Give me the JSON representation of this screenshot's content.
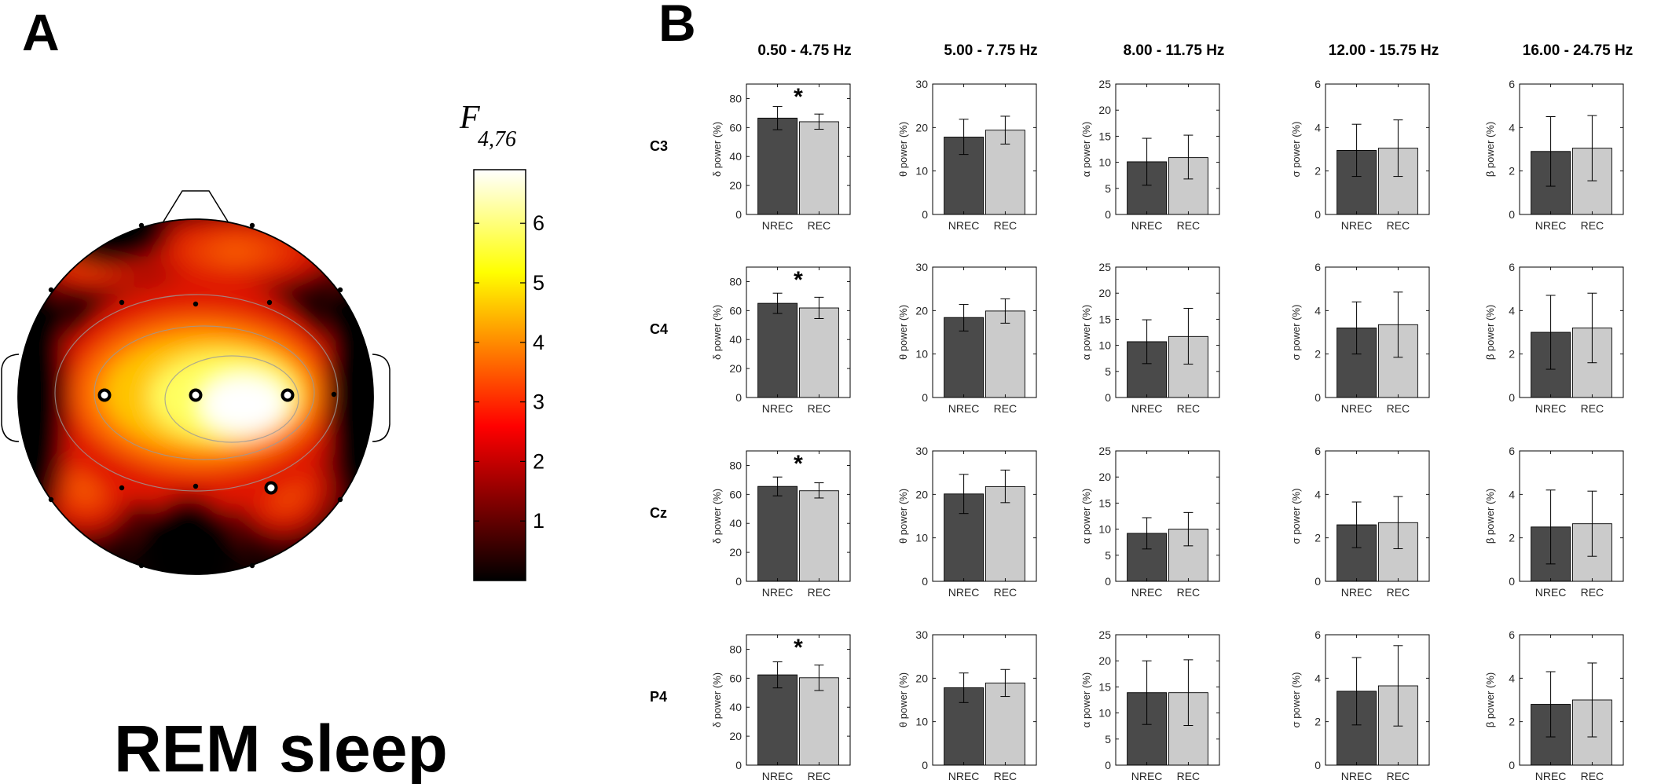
{
  "panel_a": {
    "letter": "A",
    "condition_label": "REM sleep",
    "colorbar": {
      "label_main": "F",
      "label_sub": "4,76",
      "ticks": [
        1,
        2,
        3,
        4,
        5,
        6
      ],
      "min": 0,
      "max": 6.9,
      "colormap": "hot"
    }
  },
  "panel_b": {
    "letter": "B"
  },
  "chart_data": {
    "type": "bar",
    "columns": [
      {
        "band": "0.50 - 4.75 Hz",
        "ylabel": "δ power (%)",
        "ylim": [
          0,
          90
        ],
        "yticks": [
          0,
          20,
          40,
          60,
          80
        ]
      },
      {
        "band": "5.00 - 7.75 Hz",
        "ylabel": "θ power (%)",
        "ylim": [
          0,
          30
        ],
        "yticks": [
          0,
          10,
          20,
          30
        ]
      },
      {
        "band": "8.00 - 11.75 Hz",
        "ylabel": "α power (%)",
        "ylim": [
          0,
          25
        ],
        "yticks": [
          0,
          5,
          10,
          15,
          20,
          25
        ]
      },
      {
        "band": "12.00 - 15.75 Hz",
        "ylabel": "σ power (%)",
        "ylim": [
          0,
          6
        ],
        "yticks": [
          0,
          2,
          4,
          6
        ]
      },
      {
        "band": "16.00 - 24.75 Hz",
        "ylabel": "β power (%)",
        "ylim": [
          0,
          6
        ],
        "yticks": [
          0,
          2,
          4,
          6
        ]
      }
    ],
    "categories": [
      "NREC",
      "REC"
    ],
    "colors": {
      "NREC": "#4a4a4a",
      "REC": "#cbcbcb"
    },
    "rows": [
      {
        "channel": "C3",
        "panels": [
          {
            "values": [
              66.5,
              64.0
            ],
            "errors": [
              [
                58.5,
                74.5
              ],
              [
                58.8,
                69.3
              ]
            ],
            "significant": true
          },
          {
            "values": [
              17.8,
              19.4
            ],
            "errors": [
              [
                13.8,
                21.9
              ],
              [
                16.2,
                22.6
              ]
            ],
            "significant": false
          },
          {
            "values": [
              10.1,
              10.9
            ],
            "errors": [
              [
                5.6,
                14.6
              ],
              [
                6.8,
                15.2
              ]
            ],
            "significant": false
          },
          {
            "values": [
              2.95,
              3.05
            ],
            "errors": [
              [
                1.75,
                4.15
              ],
              [
                1.75,
                4.35
              ]
            ],
            "significant": false
          },
          {
            "values": [
              2.9,
              3.05
            ],
            "errors": [
              [
                1.3,
                4.5
              ],
              [
                1.55,
                4.55
              ]
            ],
            "significant": false
          }
        ]
      },
      {
        "channel": "C4",
        "panels": [
          {
            "values": [
              65.0,
              61.8
            ],
            "errors": [
              [
                58.0,
                72.0
              ],
              [
                54.5,
                69.2
              ]
            ],
            "significant": true
          },
          {
            "values": [
              18.4,
              19.9
            ],
            "errors": [
              [
                15.3,
                21.4
              ],
              [
                17.1,
                22.7
              ]
            ],
            "significant": false
          },
          {
            "values": [
              10.7,
              11.7
            ],
            "errors": [
              [
                6.5,
                14.9
              ],
              [
                6.4,
                17.1
              ]
            ],
            "significant": false
          },
          {
            "values": [
              3.2,
              3.35
            ],
            "errors": [
              [
                2.0,
                4.4
              ],
              [
                1.85,
                4.85
              ]
            ],
            "significant": false
          },
          {
            "values": [
              3.0,
              3.2
            ],
            "errors": [
              [
                1.3,
                4.7
              ],
              [
                1.6,
                4.8
              ]
            ],
            "significant": false
          }
        ]
      },
      {
        "channel": "Cz",
        "panels": [
          {
            "values": [
              65.5,
              62.5
            ],
            "errors": [
              [
                59.0,
                72.0
              ],
              [
                57.5,
                68.0
              ]
            ],
            "significant": true
          },
          {
            "values": [
              20.1,
              21.8
            ],
            "errors": [
              [
                15.6,
                24.6
              ],
              [
                18.1,
                25.6
              ]
            ],
            "significant": false
          },
          {
            "values": [
              9.2,
              10.0
            ],
            "errors": [
              [
                6.2,
                12.2
              ],
              [
                6.8,
                13.2
              ]
            ],
            "significant": false
          },
          {
            "values": [
              2.6,
              2.7
            ],
            "errors": [
              [
                1.55,
                3.65
              ],
              [
                1.5,
                3.9
              ]
            ],
            "significant": false
          },
          {
            "values": [
              2.5,
              2.65
            ],
            "errors": [
              [
                0.8,
                4.2
              ],
              [
                1.15,
                4.15
              ]
            ],
            "significant": false
          }
        ]
      },
      {
        "channel": "P4",
        "panels": [
          {
            "values": [
              62.3,
              60.3
            ],
            "errors": [
              [
                53.3,
                71.3
              ],
              [
                51.5,
                69.1
              ]
            ],
            "significant": true
          },
          {
            "values": [
              17.8,
              18.9
            ],
            "errors": [
              [
                14.4,
                21.2
              ],
              [
                15.8,
                22.0
              ]
            ],
            "significant": false
          },
          {
            "values": [
              13.9,
              13.9
            ],
            "errors": [
              [
                7.8,
                20.0
              ],
              [
                7.6,
                20.2
              ]
            ],
            "significant": false
          },
          {
            "values": [
              3.4,
              3.65
            ],
            "errors": [
              [
                1.85,
                4.95
              ],
              [
                1.8,
                5.5
              ]
            ],
            "significant": false
          },
          {
            "values": [
              2.8,
              3.0
            ],
            "errors": [
              [
                1.3,
                4.3
              ],
              [
                1.3,
                4.7
              ]
            ],
            "significant": false
          }
        ]
      }
    ],
    "significance_marker": "*"
  }
}
